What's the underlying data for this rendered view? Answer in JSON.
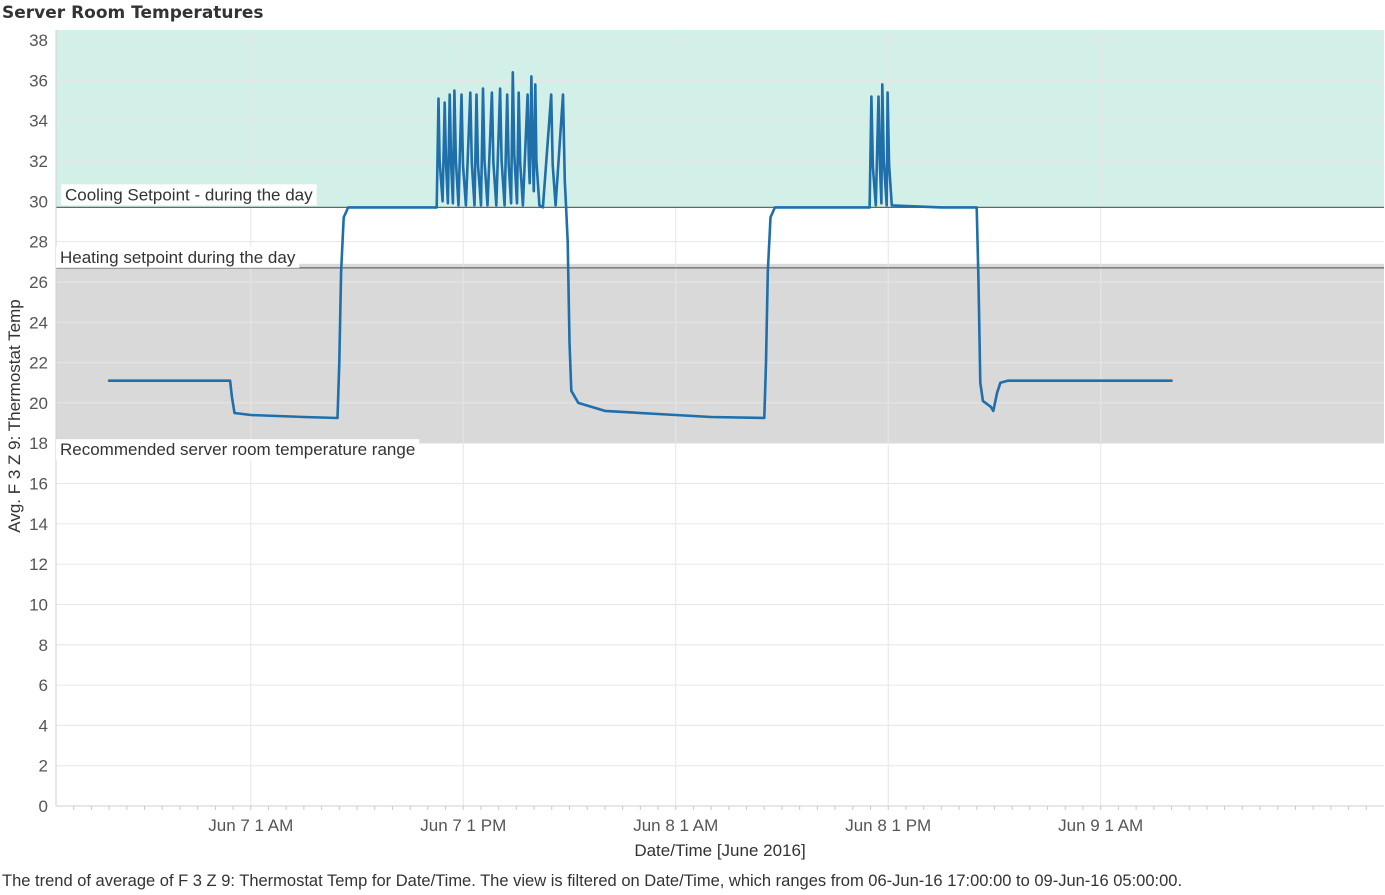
{
  "chart_data": {
    "type": "line",
    "title": "Server Room Temperatures",
    "xlabel": "Date/Time [June 2016]",
    "ylabel": "Avg. F 3 Z 9: Thermostat Temp",
    "caption": "The trend of average of F 3 Z 9: Thermostat Temp for Date/Time. The view is filtered on Date/Time, which ranges from 06-Jun-16 17:00:00 to 09-Jun-16 05:00:00.",
    "ylim": [
      0,
      38.5
    ],
    "y_ticks": [
      0,
      2,
      4,
      6,
      8,
      10,
      12,
      14,
      16,
      18,
      20,
      22,
      24,
      26,
      28,
      30,
      32,
      34,
      36,
      38
    ],
    "x_range": [
      "2016-06-06 14:00",
      "2016-06-09 17:00"
    ],
    "x_ticks": [
      {
        "label": "Jun 7 1 AM",
        "value": "2016-06-07 01:00"
      },
      {
        "label": "Jun 7 1 PM",
        "value": "2016-06-07 13:00"
      },
      {
        "label": "Jun 8 1 AM",
        "value": "2016-06-08 01:00"
      },
      {
        "label": "Jun 8 1 PM",
        "value": "2016-06-08 13:00"
      },
      {
        "label": "Jun 9 1 AM",
        "value": "2016-06-09 01:00"
      }
    ],
    "grid": true,
    "bands": [
      {
        "label": "Cooling Setpoint - during the day",
        "from": 29.7,
        "to": 38.5,
        "color": "#d3f0e8"
      },
      {
        "label": "Recommended server room temperature range",
        "from": 18,
        "to": 26.9,
        "color": "#d9d9d9"
      }
    ],
    "reference_lines": [
      {
        "label": "Cooling Setpoint - during the day",
        "value": 29.7,
        "color": "#666666"
      },
      {
        "label": "Heating setpoint during the day",
        "value": 26.7,
        "color": "#666666"
      }
    ],
    "series": [
      {
        "color": "#1f6fab",
        "points": [
          [
            "2016-06-06 17:00",
            21.1
          ],
          [
            "2016-06-06 20:00",
            21.1
          ],
          [
            "2016-06-06 23:50",
            21.1
          ],
          [
            "2016-06-06 23:56",
            20.3
          ],
          [
            "2016-06-07 00:05",
            19.5
          ],
          [
            "2016-06-07 01:00",
            19.4
          ],
          [
            "2016-06-07 04:00",
            19.3
          ],
          [
            "2016-06-07 05:54",
            19.25
          ],
          [
            "2016-06-07 06:00",
            22.0
          ],
          [
            "2016-06-07 06:06",
            26.5
          ],
          [
            "2016-06-07 06:15",
            29.2
          ],
          [
            "2016-06-07 06:30",
            29.7
          ],
          [
            "2016-06-07 11:30",
            29.7
          ],
          [
            "2016-06-07 11:36",
            35.1
          ],
          [
            "2016-06-07 11:40",
            32.0
          ],
          [
            "2016-06-07 11:50",
            30.0
          ],
          [
            "2016-06-07 11:57",
            34.9
          ],
          [
            "2016-06-07 12:02",
            31.8
          ],
          [
            "2016-06-07 12:08",
            29.9
          ],
          [
            "2016-06-07 12:14",
            35.3
          ],
          [
            "2016-06-07 12:19",
            31.8
          ],
          [
            "2016-06-07 12:25",
            29.9
          ],
          [
            "2016-06-07 12:30",
            35.5
          ],
          [
            "2016-06-07 12:35",
            32.0
          ],
          [
            "2016-06-07 12:44",
            29.8
          ],
          [
            "2016-06-07 12:54",
            35.3
          ],
          [
            "2016-06-07 12:59",
            31.8
          ],
          [
            "2016-06-07 13:09",
            29.8
          ],
          [
            "2016-06-07 13:24",
            35.4
          ],
          [
            "2016-06-07 13:29",
            31.9
          ],
          [
            "2016-06-07 13:38",
            29.8
          ],
          [
            "2016-06-07 13:45",
            35.3
          ],
          [
            "2016-06-07 13:50",
            31.8
          ],
          [
            "2016-06-07 14:00",
            29.8
          ],
          [
            "2016-06-07 14:07",
            35.6
          ],
          [
            "2016-06-07 14:12",
            32.0
          ],
          [
            "2016-06-07 14:22",
            29.8
          ],
          [
            "2016-06-07 14:37",
            35.4
          ],
          [
            "2016-06-07 14:42",
            31.9
          ],
          [
            "2016-06-07 14:52",
            29.8
          ],
          [
            "2016-06-07 15:05",
            35.6
          ],
          [
            "2016-06-07 15:10",
            32.0
          ],
          [
            "2016-06-07 15:20",
            29.8
          ],
          [
            "2016-06-07 15:29",
            35.3
          ],
          [
            "2016-06-07 15:34",
            31.8
          ],
          [
            "2016-06-07 15:42",
            29.9
          ],
          [
            "2016-06-07 15:48",
            36.4
          ],
          [
            "2016-06-07 15:53",
            32.3
          ],
          [
            "2016-06-07 16:02",
            29.9
          ],
          [
            "2016-06-07 16:08",
            35.4
          ],
          [
            "2016-06-07 16:13",
            31.9
          ],
          [
            "2016-06-07 16:22",
            29.8
          ],
          [
            "2016-06-07 16:38",
            35.3
          ],
          [
            "2016-06-07 16:42",
            32.0
          ],
          [
            "2016-06-07 16:45",
            30.9
          ],
          [
            "2016-06-07 16:51",
            36.2
          ],
          [
            "2016-06-07 16:55",
            32.5
          ],
          [
            "2016-06-07 16:59",
            30.5
          ],
          [
            "2016-06-07 17:04",
            35.8
          ],
          [
            "2016-06-07 17:08",
            32.0
          ],
          [
            "2016-06-07 17:18",
            29.8
          ],
          [
            "2016-06-07 17:30",
            29.7
          ],
          [
            "2016-06-07 17:58",
            35.3
          ],
          [
            "2016-06-07 18:03",
            31.8
          ],
          [
            "2016-06-07 18:13",
            29.8
          ],
          [
            "2016-06-07 18:38",
            35.3
          ],
          [
            "2016-06-07 18:44",
            31.0
          ],
          [
            "2016-06-07 18:48",
            29.8
          ],
          [
            "2016-06-07 18:54",
            28.0
          ],
          [
            "2016-06-07 19:00",
            23.0
          ],
          [
            "2016-06-07 19:06",
            20.6
          ],
          [
            "2016-06-07 19:30",
            20.0
          ],
          [
            "2016-06-07 21:00",
            19.6
          ],
          [
            "2016-06-08 00:00",
            19.45
          ],
          [
            "2016-06-08 03:00",
            19.3
          ],
          [
            "2016-06-08 06:00",
            19.25
          ],
          [
            "2016-06-08 06:06",
            22.0
          ],
          [
            "2016-06-08 06:12",
            26.5
          ],
          [
            "2016-06-08 06:21",
            29.2
          ],
          [
            "2016-06-08 06:36",
            29.7
          ],
          [
            "2016-06-08 11:57",
            29.7
          ],
          [
            "2016-06-08 12:03",
            35.2
          ],
          [
            "2016-06-08 12:08",
            31.7
          ],
          [
            "2016-06-08 12:18",
            29.8
          ],
          [
            "2016-06-08 12:27",
            35.2
          ],
          [
            "2016-06-08 12:32",
            31.7
          ],
          [
            "2016-06-08 12:37",
            29.9
          ],
          [
            "2016-06-08 12:40",
            35.8
          ],
          [
            "2016-06-08 12:45",
            32.0
          ],
          [
            "2016-06-08 12:55",
            29.8
          ],
          [
            "2016-06-08 12:58",
            35.4
          ],
          [
            "2016-06-08 13:03",
            31.8
          ],
          [
            "2016-06-08 13:12",
            29.8
          ],
          [
            "2016-06-08 16:00",
            29.7
          ],
          [
            "2016-06-08 18:00",
            29.7
          ],
          [
            "2016-06-08 18:06",
            26.0
          ],
          [
            "2016-06-08 18:12",
            21.0
          ],
          [
            "2016-06-08 18:21",
            20.1
          ],
          [
            "2016-06-08 18:48",
            19.8
          ],
          [
            "2016-06-08 18:56",
            19.6
          ],
          [
            "2016-06-08 19:09",
            20.5
          ],
          [
            "2016-06-08 19:20",
            21.0
          ],
          [
            "2016-06-08 19:45",
            21.1
          ],
          [
            "2016-06-09 05:00",
            21.1
          ]
        ]
      }
    ]
  }
}
